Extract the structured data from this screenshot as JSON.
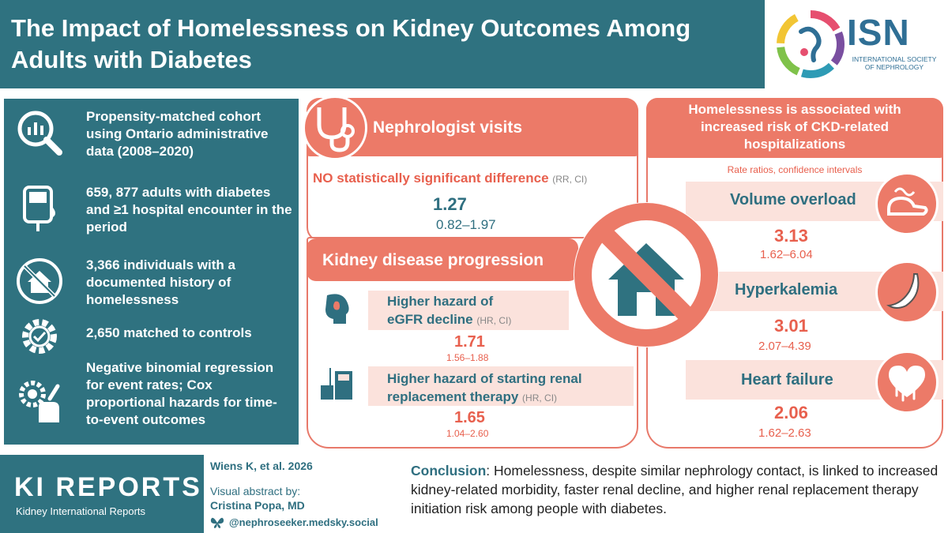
{
  "header": {
    "title": "The Impact of Homelessness on Kidney Outcomes Among Adults with Diabetes",
    "logo": {
      "acronym": "ISN",
      "subtitle_line1": "INTERNATIONAL SOCIETY",
      "subtitle_line2": "OF NEPHROLOGY"
    }
  },
  "methods": [
    {
      "icon": "chart-magnifier-icon",
      "text": "Propensity-matched cohort using Ontario administrative data (2008–2020)"
    },
    {
      "icon": "glucometer-icon",
      "text": "659, 877 adults with diabetes and ≥1 hospital encounter in the period"
    },
    {
      "icon": "no-house-icon",
      "text": "3,366 individuals with a documented history of homelessness"
    },
    {
      "icon": "gear-check-icon",
      "text": "2,650 matched to controls"
    },
    {
      "icon": "hand-gear-icon",
      "text": "Negative binomial regression for event rates; Cox proportional hazards for time-to-event outcomes"
    }
  ],
  "nephrologist": {
    "title": "Nephrologist visits",
    "finding": "NO statistically significant difference",
    "finding_note": "(RR, CI)",
    "value": "1.27",
    "ci": "0.82–1.97"
  },
  "progression": {
    "title": "Kidney disease progression",
    "items": [
      {
        "label_line1": "Higher hazard of",
        "label_line2": "eGFR decline",
        "note": "(HR, CI)",
        "value": "1.71",
        "ci": "1.56–1.88"
      },
      {
        "label_line1": "Higher hazard of starting renal",
        "label_line2": "replacement therapy",
        "note": "(HR, CI)",
        "value": "1.65",
        "ci": "1.04–2.60"
      }
    ]
  },
  "hospitalizations": {
    "title": "Homelessness is associated with increased risk of CKD-related hospitalizations",
    "subtitle": "Rate ratios, confidence intervals",
    "items": [
      {
        "label": "Volume overload",
        "value": "3.13",
        "ci": "1.62–6.04"
      },
      {
        "label": "Hyperkalemia",
        "value": "3.01",
        "ci": "2.07–4.39"
      },
      {
        "label": "Heart failure",
        "value": "2.06",
        "ci": "1.62–2.63"
      }
    ]
  },
  "footer": {
    "journal": "KI REPORTS",
    "journal_sub": "Kidney International Reports",
    "citation": "Wiens K, et al. 2026",
    "abstract_by": "Visual abstract by:",
    "author": "Cristina Popa, MD",
    "handle": "@nephroseeker.medsky.social",
    "conclusion_label": "Conclusion",
    "conclusion_text": ": Homelessness, despite similar nephrology contact, is linked to increased kidney-related morbidity, faster renal decline, and higher renal replacement therapy initiation risk among people with diabetes."
  },
  "colors": {
    "teal": "#2f7280",
    "salmon": "#ec7a68",
    "red_text": "#e8604e",
    "pink_band": "#fbe2dc"
  }
}
